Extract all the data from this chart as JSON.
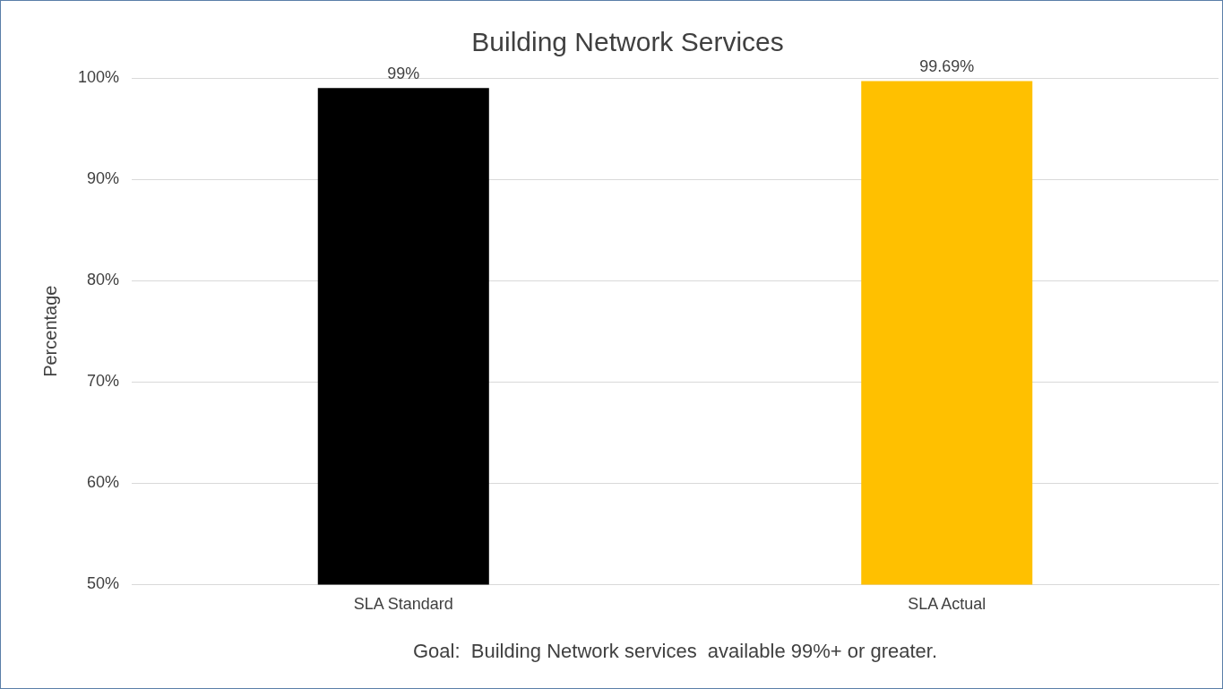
{
  "chart_data": {
    "type": "bar",
    "title": "Building Network Services",
    "ylabel": "Percentage",
    "categories": [
      "SLA Standard",
      "SLA Actual"
    ],
    "values": [
      99,
      99.69
    ],
    "colors": [
      "#000000",
      "#ffc000"
    ],
    "value_labels": [
      "99%",
      "99.69%"
    ],
    "ylim": [
      50,
      100
    ],
    "yticks": [
      {
        "value": 50,
        "label": "50%"
      },
      {
        "value": 60,
        "label": "60%"
      },
      {
        "value": 70,
        "label": "70%"
      },
      {
        "value": 80,
        "label": "80%"
      },
      {
        "value": 90,
        "label": "90%"
      },
      {
        "value": 100,
        "label": "100%"
      }
    ],
    "grid": "y",
    "legend": false,
    "annotations": [
      "Goal:  Building Network services  available 99%+ or greater."
    ]
  }
}
